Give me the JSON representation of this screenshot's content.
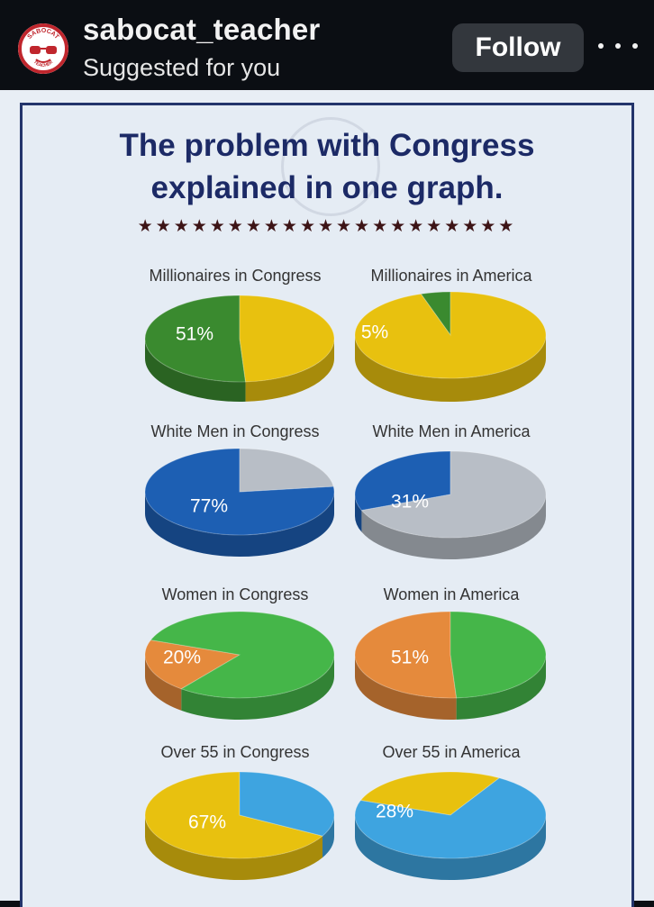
{
  "header": {
    "username": "sabocat_teacher",
    "subtitle": "Suggested for you",
    "follow_label": "Follow",
    "avatar_text_top": "SABOCAT",
    "avatar_text_bottom": "TEACHER"
  },
  "infographic": {
    "title_line1": "The problem with Congress",
    "title_line2": "explained in one graph.",
    "stars": "★★★★★★★★★★★★★★★★★★★★★"
  },
  "colors": {
    "green": "#3a8a2f",
    "yellow": "#e8c10f",
    "blue": "#1d5fb3",
    "gray": "#b8bec6",
    "bright_green": "#45b649",
    "orange": "#e58a3c",
    "light_blue": "#3ea4e0"
  },
  "chart_data": [
    {
      "type": "pie",
      "title": "Millionaires in Congress",
      "slices": [
        {
          "value": 51,
          "label": "51%",
          "color": "#3a8a2f"
        },
        {
          "value": 49,
          "color": "#e8c10f"
        }
      ]
    },
    {
      "type": "pie",
      "title": "Millionaires in America",
      "slices": [
        {
          "value": 5,
          "label": "5%",
          "color": "#3a8a2f"
        },
        {
          "value": 95,
          "color": "#e8c10f"
        }
      ]
    },
    {
      "type": "pie",
      "title": "White Men in Congress",
      "slices": [
        {
          "value": 77,
          "label": "77%",
          "color": "#1d5fb3"
        },
        {
          "value": 23,
          "color": "#b8bec6"
        }
      ]
    },
    {
      "type": "pie",
      "title": "White Men in America",
      "slices": [
        {
          "value": 31,
          "label": "31%",
          "color": "#1d5fb3"
        },
        {
          "value": 69,
          "color": "#b8bec6"
        }
      ]
    },
    {
      "type": "pie",
      "title": "Women in Congress",
      "slices": [
        {
          "value": 20,
          "label": "20%",
          "color": "#e58a3c"
        },
        {
          "value": 80,
          "color": "#45b649"
        }
      ]
    },
    {
      "type": "pie",
      "title": "Women in America",
      "slices": [
        {
          "value": 51,
          "label": "51%",
          "color": "#e58a3c"
        },
        {
          "value": 49,
          "color": "#45b649"
        }
      ]
    },
    {
      "type": "pie",
      "title": "Over 55 in Congress",
      "slices": [
        {
          "value": 67,
          "label": "67%",
          "color": "#e8c10f"
        },
        {
          "value": 33,
          "color": "#3ea4e0"
        }
      ]
    },
    {
      "type": "pie",
      "title": "Over 55 in America",
      "slices": [
        {
          "value": 28,
          "label": "28%",
          "color": "#e8c10f"
        },
        {
          "value": 72,
          "color": "#3ea4e0"
        }
      ]
    }
  ]
}
